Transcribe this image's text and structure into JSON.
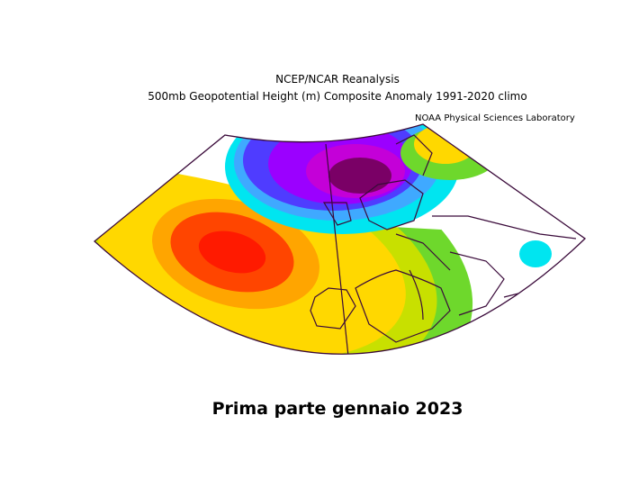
{
  "header": {
    "title": "NCEP/NCAR Reanalysis",
    "subtitle": "500mb Geopotential Height (m) Composite Anomaly 1991-2020 climo",
    "credit": "NOAA Physical Sciences Laboratory"
  },
  "caption": "Prima parte gennaio 2023"
}
